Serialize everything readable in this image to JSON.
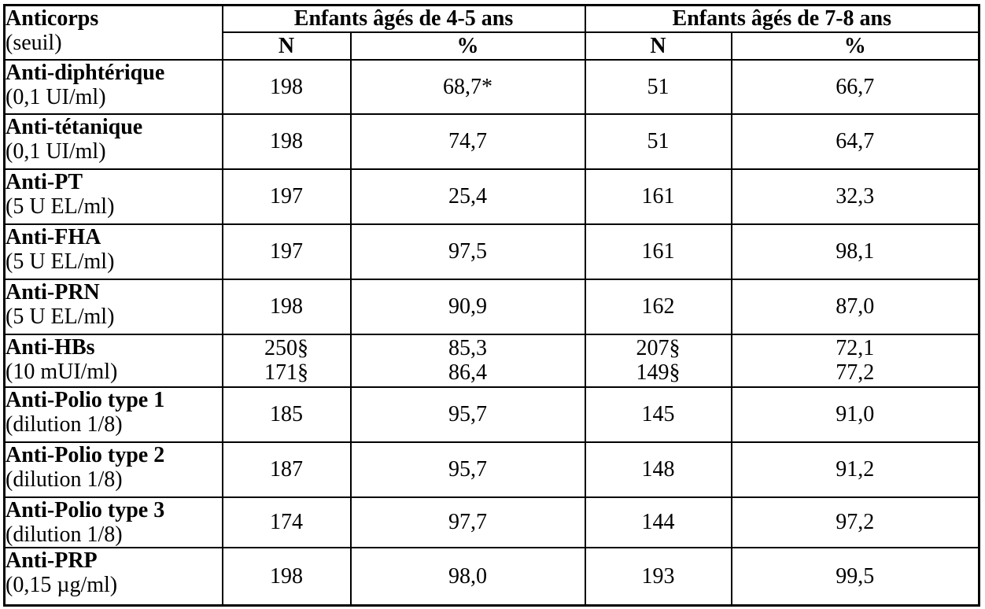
{
  "table": {
    "header": {
      "antibody_title": "Anticorps",
      "antibody_sub": "(seuil)",
      "group_4_5": "Enfants âgés de 4-5 ans",
      "group_7_8": "Enfants âgés de 7-8 ans",
      "n_label": "N",
      "pct_label": "%"
    },
    "rows": [
      {
        "label": "Anti-diphtérique",
        "seuil": "(0,1 UI/ml)",
        "n1": "198",
        "p1": "68,7*",
        "n2": "51",
        "p2": "66,7"
      },
      {
        "label": "Anti-tétanique",
        "seuil": "(0,1 UI/ml)",
        "n1": "198",
        "p1": "74,7",
        "n2": "51",
        "p2": "64,7"
      },
      {
        "label": "Anti-PT",
        "seuil": "(5 U EL/ml)",
        "n1": "197",
        "p1": "25,4",
        "n2": "161",
        "p2": "32,3"
      },
      {
        "label": "Anti-FHA",
        "seuil": "(5 U EL/ml)",
        "n1": "197",
        "p1": "97,5",
        "n2": "161",
        "p2": "98,1"
      },
      {
        "label": "Anti-PRN",
        "seuil": "(5 U EL/ml)",
        "n1": "198",
        "p1": "90,9",
        "n2": "162",
        "p2": "87,0"
      },
      {
        "label": "Anti-HBs",
        "seuil": "(10 mUI/ml)",
        "n1": "250§\n171§",
        "p1": "85,3\n86,4",
        "n2": "207§\n149§",
        "p2": "72,1\n77,2"
      },
      {
        "label": "Anti-Polio type 1",
        "seuil": "(dilution 1/8)",
        "n1": "185",
        "p1": "95,7",
        "n2": "145",
        "p2": "91,0"
      },
      {
        "label": "Anti-Polio type 2",
        "seuil": "(dilution 1/8)",
        "n1": "187",
        "p1": "95,7",
        "n2": "148",
        "p2": "91,2"
      },
      {
        "label": "Anti-Polio type 3",
        "seuil": "(dilution 1/8)",
        "n1": "174",
        "p1": "97,7",
        "n2": "144",
        "p2": "97,2"
      },
      {
        "label": "Anti-PRP",
        "seuil": "(0,15 µg/ml)",
        "n1": "198",
        "p1": "98,0",
        "n2": "193",
        "p2": "99,5"
      }
    ]
  },
  "colors": {
    "border": "#000000",
    "text": "#000000",
    "background": "#ffffff"
  }
}
